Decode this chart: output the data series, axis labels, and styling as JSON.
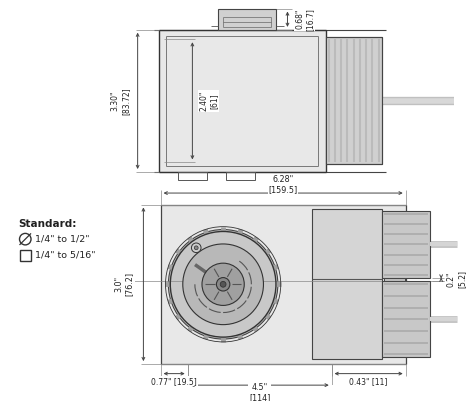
{
  "bg_color": "#ffffff",
  "line_color": "#444444",
  "dim_color": "#444444",
  "text_color": "#222222",
  "figsize": [
    4.73,
    4.01
  ],
  "dpi": 100,
  "legend_standard": "Standard:",
  "legend_circle": "∅ 1/4\" to 1/2\"",
  "legend_square": "1/4\" to 5/16\""
}
